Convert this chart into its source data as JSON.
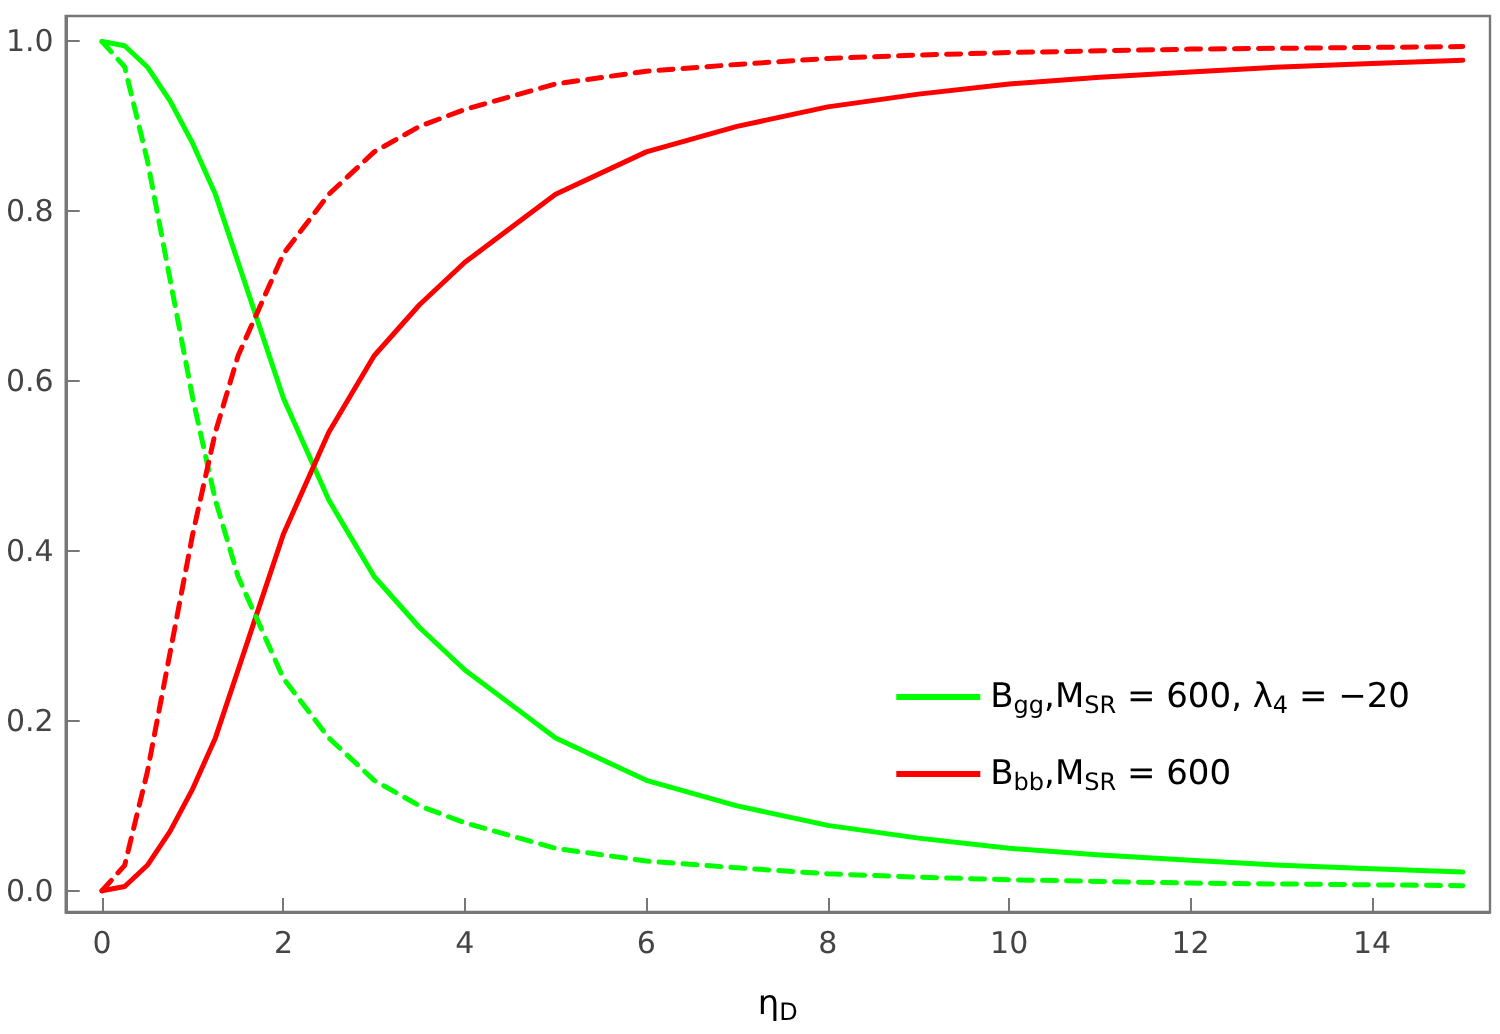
{
  "chart_data": {
    "type": "line",
    "xlabel": "η$_{D}$",
    "xlim": [
      -0.4,
      15.3
    ],
    "ylim": [
      -0.025,
      1.03
    ],
    "xticks": [
      0,
      2,
      4,
      6,
      8,
      10,
      12,
      14
    ],
    "yticks": [
      {
        "value": 0,
        "label": "0.0"
      },
      {
        "value": 0.2,
        "label": "0.2"
      },
      {
        "value": 0.4,
        "label": "0.4"
      },
      {
        "value": 0.6,
        "label": "0.6"
      },
      {
        "value": 0.8,
        "label": "0.8"
      },
      {
        "value": 1,
        "label": "1.0"
      }
    ],
    "x": [
      0,
      0.25,
      0.5,
      0.75,
      1,
      1.25,
      1.5,
      2,
      2.5,
      3,
      3.5,
      4,
      5,
      6,
      7,
      8,
      9,
      10,
      11,
      12,
      13,
      14,
      15
    ],
    "grid": false,
    "legend": "right",
    "marker": "none",
    "series": [
      {
        "name": "B$_{gg}$,M$_{SR}$ = 600, λ$_{4}$ = −20",
        "color": "#00ff00",
        "line_style": "solid",
        "values": [
          1,
          0.995,
          0.97,
          0.93,
          0.88,
          0.82,
          0.74,
          0.58,
          0.46,
          0.37,
          0.31,
          0.26,
          0.18,
          0.13,
          0.1,
          0.077,
          0.062,
          0.05,
          0.042,
          0.036,
          0.03,
          0.026,
          0.022
        ]
      },
      {
        "name": "B$_{bb}$,M$_{SR}$ = 600",
        "color": "#ff0000",
        "line_style": "solid",
        "values": [
          0,
          0.005,
          0.03,
          0.07,
          0.12,
          0.18,
          0.26,
          0.42,
          0.54,
          0.63,
          0.69,
          0.74,
          0.82,
          0.87,
          0.9,
          0.923,
          0.938,
          0.95,
          0.958,
          0.964,
          0.97,
          0.974,
          0.978
        ]
      },
      {
        "color": "#00ff00",
        "line_style": "dashed",
        "values": [
          1,
          0.97,
          0.86,
          0.72,
          0.58,
          0.46,
          0.37,
          0.25,
          0.18,
          0.13,
          0.1,
          0.08,
          0.05,
          0.035,
          0.027,
          0.02,
          0.016,
          0.013,
          0.011,
          0.009,
          0.008,
          0.007,
          0.006
        ]
      },
      {
        "color": "#ff0000",
        "line_style": "dashed",
        "values": [
          0,
          0.03,
          0.14,
          0.28,
          0.42,
          0.54,
          0.63,
          0.75,
          0.82,
          0.87,
          0.9,
          0.92,
          0.95,
          0.965,
          0.973,
          0.98,
          0.984,
          0.987,
          0.989,
          0.991,
          0.992,
          0.993,
          0.994
        ]
      }
    ]
  }
}
